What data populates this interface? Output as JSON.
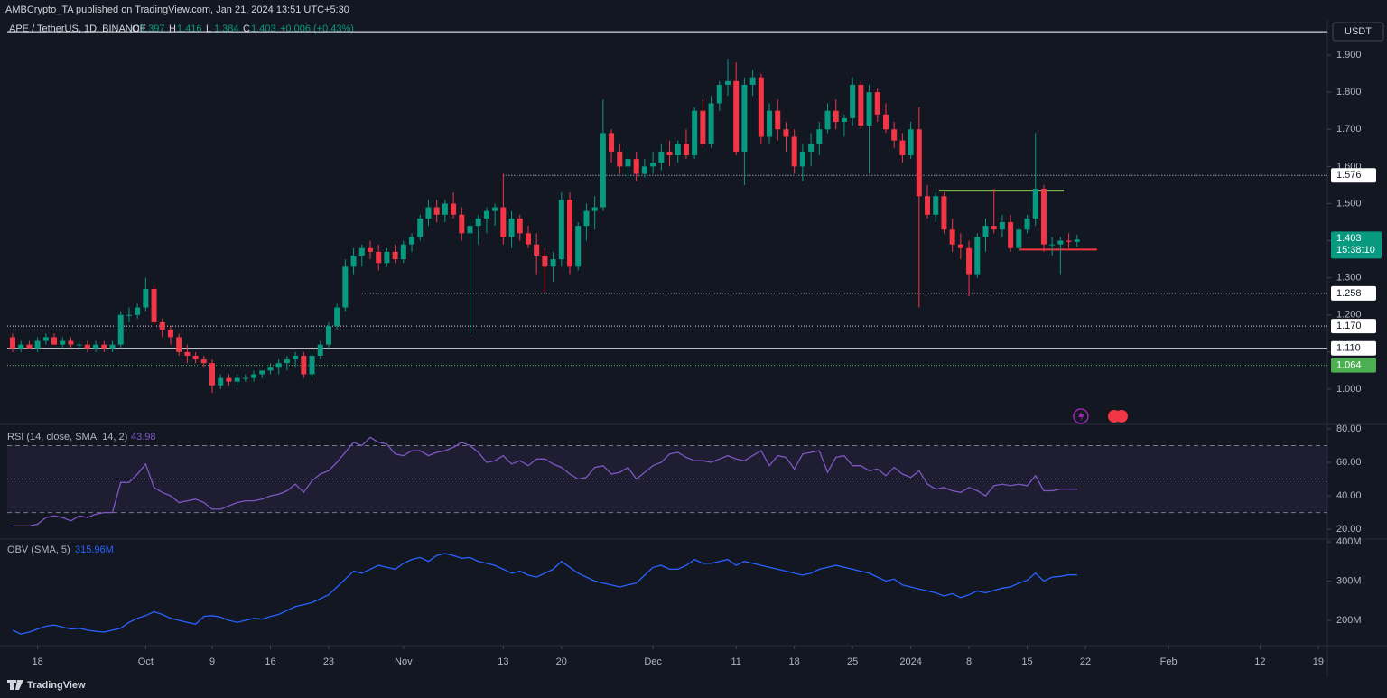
{
  "header": {
    "publisher": "AMBCrypto_TA published on TradingView.com, Jan 21, 2024 13:51 UTC+5:30",
    "brand": "TradingView"
  },
  "chart_data": [
    {
      "type": "candlestick",
      "symbol": "APE / TetherUS, 1D, BINANCE",
      "ohlc_letters": [
        "O",
        "H",
        "L",
        "C"
      ],
      "change": "+0.006 (+0.43%)",
      "currency": "USDT",
      "countdown": "15:38:10",
      "up_color": "#089981",
      "down_color": "#f23645",
      "xlim": [
        -0.65,
        158.1
      ],
      "xticks": [
        {
          "value": 3,
          "label": "18"
        },
        {
          "value": 16,
          "label": "Oct"
        },
        {
          "value": 24,
          "label": "9"
        },
        {
          "value": 31,
          "label": "16"
        },
        {
          "value": 38,
          "label": "23"
        },
        {
          "value": 47,
          "label": "Nov"
        },
        {
          "value": 59,
          "label": "13"
        },
        {
          "value": 66,
          "label": "20"
        },
        {
          "value": 77,
          "label": "Dec"
        },
        {
          "value": 87,
          "label": "11"
        },
        {
          "value": 94,
          "label": "18"
        },
        {
          "value": 101,
          "label": "25"
        },
        {
          "value": 108,
          "label": "2024"
        },
        {
          "value": 115,
          "label": "8"
        },
        {
          "value": 122,
          "label": "15"
        },
        {
          "value": 129,
          "label": "22"
        },
        {
          "value": 139,
          "label": "Feb"
        },
        {
          "value": 150,
          "label": "12"
        },
        {
          "value": 157,
          "label": "19"
        }
      ],
      "ylim": [
        0.905,
        1.995
      ],
      "yticks": [
        {
          "value": 1.0,
          "label": "1.000"
        },
        {
          "value": 1.1,
          "label": "1.100"
        },
        {
          "value": 1.2,
          "label": "1.200"
        },
        {
          "value": 1.3,
          "label": "1.300"
        },
        {
          "value": 1.4,
          "label": "1.400"
        },
        {
          "value": 1.5,
          "label": "1.500"
        },
        {
          "value": 1.6,
          "label": "1.600"
        },
        {
          "value": 1.7,
          "label": "1.700"
        },
        {
          "value": 1.8,
          "label": "1.800"
        },
        {
          "value": 1.9,
          "label": "1.900"
        }
      ],
      "levels": [
        {
          "value": 1.963,
          "style": "solid",
          "color": "#d1d4dc"
        },
        {
          "value": 1.576,
          "style": "dotted",
          "color": "#d1d4dc"
        },
        {
          "value": 1.258,
          "style": "dotted",
          "color": "#d1d4dc"
        },
        {
          "value": 1.17,
          "label": "1.170",
          "style": "dotted",
          "color": "#d1d4dc"
        },
        {
          "value": 1.11,
          "label": "1.110",
          "style": "solid",
          "color": "#d1d4dc"
        },
        {
          "value": 1.064,
          "style": "dotted",
          "color": "#4caf50"
        }
      ],
      "trend_lines": [
        {
          "value": 1.535,
          "color": "#8bc34a"
        },
        {
          "value": 1.376,
          "color": "#f23645"
        }
      ],
      "candles": [
        [
          1.14,
          1.15,
          1.1,
          1.11
        ],
        [
          1.11,
          1.13,
          1.1,
          1.12
        ],
        [
          1.12,
          1.13,
          1.11,
          1.11
        ],
        [
          1.11,
          1.14,
          1.1,
          1.13
        ],
        [
          1.13,
          1.15,
          1.12,
          1.14
        ],
        [
          1.14,
          1.15,
          1.12,
          1.12
        ],
        [
          1.12,
          1.14,
          1.11,
          1.13
        ],
        [
          1.13,
          1.14,
          1.11,
          1.12
        ],
        [
          1.12,
          1.13,
          1.11,
          1.12
        ],
        [
          1.12,
          1.13,
          1.1,
          1.11
        ],
        [
          1.11,
          1.13,
          1.1,
          1.12
        ],
        [
          1.12,
          1.13,
          1.1,
          1.11
        ],
        [
          1.11,
          1.13,
          1.1,
          1.12
        ],
        [
          1.12,
          1.21,
          1.11,
          1.2
        ],
        [
          1.2,
          1.22,
          1.18,
          1.2
        ],
        [
          1.2,
          1.23,
          1.19,
          1.22
        ],
        [
          1.22,
          1.3,
          1.21,
          1.27
        ],
        [
          1.27,
          1.28,
          1.17,
          1.18
        ],
        [
          1.18,
          1.19,
          1.14,
          1.16
        ],
        [
          1.16,
          1.17,
          1.12,
          1.14
        ],
        [
          1.14,
          1.15,
          1.09,
          1.1
        ],
        [
          1.1,
          1.12,
          1.07,
          1.09
        ],
        [
          1.09,
          1.1,
          1.07,
          1.08
        ],
        [
          1.08,
          1.09,
          1.06,
          1.07
        ],
        [
          1.07,
          1.08,
          0.99,
          1.01
        ],
        [
          1.01,
          1.04,
          1.0,
          1.03
        ],
        [
          1.03,
          1.04,
          1.01,
          1.02
        ],
        [
          1.02,
          1.04,
          1.01,
          1.03
        ],
        [
          1.03,
          1.04,
          1.02,
          1.03
        ],
        [
          1.03,
          1.05,
          1.02,
          1.04
        ],
        [
          1.04,
          1.05,
          1.03,
          1.05
        ],
        [
          1.05,
          1.07,
          1.04,
          1.06
        ],
        [
          1.06,
          1.08,
          1.04,
          1.07
        ],
        [
          1.07,
          1.09,
          1.05,
          1.08
        ],
        [
          1.08,
          1.1,
          1.06,
          1.09
        ],
        [
          1.09,
          1.1,
          1.03,
          1.04
        ],
        [
          1.04,
          1.1,
          1.03,
          1.09
        ],
        [
          1.09,
          1.13,
          1.08,
          1.12
        ],
        [
          1.12,
          1.18,
          1.11,
          1.17
        ],
        [
          1.17,
          1.23,
          1.16,
          1.22
        ],
        [
          1.22,
          1.35,
          1.21,
          1.33
        ],
        [
          1.33,
          1.38,
          1.31,
          1.36
        ],
        [
          1.36,
          1.39,
          1.33,
          1.38
        ],
        [
          1.38,
          1.4,
          1.35,
          1.37
        ],
        [
          1.37,
          1.39,
          1.32,
          1.34
        ],
        [
          1.34,
          1.38,
          1.33,
          1.37
        ],
        [
          1.37,
          1.39,
          1.34,
          1.35
        ],
        [
          1.35,
          1.4,
          1.34,
          1.39
        ],
        [
          1.39,
          1.42,
          1.37,
          1.41
        ],
        [
          1.41,
          1.47,
          1.4,
          1.46
        ],
        [
          1.46,
          1.51,
          1.44,
          1.49
        ],
        [
          1.49,
          1.51,
          1.45,
          1.47
        ],
        [
          1.47,
          1.51,
          1.45,
          1.5
        ],
        [
          1.5,
          1.53,
          1.46,
          1.47
        ],
        [
          1.47,
          1.49,
          1.4,
          1.42
        ],
        [
          1.42,
          1.46,
          1.15,
          1.44
        ],
        [
          1.44,
          1.47,
          1.39,
          1.46
        ],
        [
          1.46,
          1.49,
          1.42,
          1.48
        ],
        [
          1.48,
          1.5,
          1.44,
          1.49
        ],
        [
          1.49,
          1.58,
          1.39,
          1.41
        ],
        [
          1.41,
          1.48,
          1.38,
          1.46
        ],
        [
          1.46,
          1.47,
          1.4,
          1.42
        ],
        [
          1.42,
          1.44,
          1.38,
          1.39
        ],
        [
          1.39,
          1.42,
          1.31,
          1.36
        ],
        [
          1.36,
          1.38,
          1.26,
          1.33
        ],
        [
          1.33,
          1.37,
          1.29,
          1.35
        ],
        [
          1.35,
          1.53,
          1.33,
          1.51
        ],
        [
          1.51,
          1.53,
          1.31,
          1.33
        ],
        [
          1.33,
          1.45,
          1.32,
          1.44
        ],
        [
          1.44,
          1.5,
          1.4,
          1.48
        ],
        [
          1.48,
          1.52,
          1.43,
          1.49
        ],
        [
          1.49,
          1.78,
          1.48,
          1.69
        ],
        [
          1.69,
          1.7,
          1.61,
          1.64
        ],
        [
          1.64,
          1.66,
          1.58,
          1.6
        ],
        [
          1.6,
          1.65,
          1.57,
          1.62
        ],
        [
          1.62,
          1.64,
          1.56,
          1.58
        ],
        [
          1.58,
          1.62,
          1.57,
          1.6
        ],
        [
          1.6,
          1.64,
          1.58,
          1.61
        ],
        [
          1.61,
          1.66,
          1.59,
          1.64
        ],
        [
          1.64,
          1.67,
          1.6,
          1.63
        ],
        [
          1.63,
          1.67,
          1.61,
          1.66
        ],
        [
          1.66,
          1.7,
          1.62,
          1.63
        ],
        [
          1.63,
          1.76,
          1.62,
          1.75
        ],
        [
          1.75,
          1.78,
          1.65,
          1.66
        ],
        [
          1.66,
          1.79,
          1.65,
          1.77
        ],
        [
          1.77,
          1.83,
          1.75,
          1.82
        ],
        [
          1.82,
          1.89,
          1.79,
          1.83
        ],
        [
          1.83,
          1.88,
          1.63,
          1.64
        ],
        [
          1.64,
          1.84,
          1.55,
          1.82
        ],
        [
          1.82,
          1.86,
          1.79,
          1.84
        ],
        [
          1.84,
          1.85,
          1.66,
          1.68
        ],
        [
          1.68,
          1.77,
          1.66,
          1.75
        ],
        [
          1.75,
          1.78,
          1.67,
          1.7
        ],
        [
          1.7,
          1.72,
          1.64,
          1.68
        ],
        [
          1.68,
          1.7,
          1.58,
          1.6
        ],
        [
          1.6,
          1.66,
          1.56,
          1.64
        ],
        [
          1.64,
          1.69,
          1.6,
          1.66
        ],
        [
          1.66,
          1.72,
          1.63,
          1.7
        ],
        [
          1.7,
          1.77,
          1.69,
          1.75
        ],
        [
          1.75,
          1.78,
          1.7,
          1.72
        ],
        [
          1.72,
          1.74,
          1.68,
          1.73
        ],
        [
          1.73,
          1.84,
          1.71,
          1.82
        ],
        [
          1.82,
          1.83,
          1.7,
          1.71
        ],
        [
          1.71,
          1.82,
          1.58,
          1.8
        ],
        [
          1.8,
          1.81,
          1.72,
          1.74
        ],
        [
          1.74,
          1.77,
          1.69,
          1.7
        ],
        [
          1.7,
          1.72,
          1.65,
          1.67
        ],
        [
          1.67,
          1.69,
          1.61,
          1.63
        ],
        [
          1.63,
          1.72,
          1.62,
          1.7
        ],
        [
          1.7,
          1.76,
          1.22,
          1.52
        ],
        [
          1.52,
          1.55,
          1.46,
          1.47
        ],
        [
          1.47,
          1.53,
          1.45,
          1.52
        ],
        [
          1.52,
          1.53,
          1.42,
          1.43
        ],
        [
          1.43,
          1.46,
          1.37,
          1.39
        ],
        [
          1.39,
          1.42,
          1.35,
          1.38
        ],
        [
          1.38,
          1.4,
          1.25,
          1.31
        ],
        [
          1.31,
          1.42,
          1.3,
          1.41
        ],
        [
          1.41,
          1.46,
          1.37,
          1.44
        ],
        [
          1.44,
          1.54,
          1.42,
          1.43
        ],
        [
          1.43,
          1.47,
          1.41,
          1.45
        ],
        [
          1.45,
          1.47,
          1.37,
          1.38
        ],
        [
          1.38,
          1.44,
          1.37,
          1.43
        ],
        [
          1.43,
          1.47,
          1.42,
          1.46
        ],
        [
          1.46,
          1.69,
          1.44,
          1.54
        ],
        [
          1.54,
          1.55,
          1.37,
          1.39
        ],
        [
          1.39,
          1.41,
          1.36,
          1.39
        ],
        [
          1.39,
          1.41,
          1.31,
          1.4
        ],
        [
          1.4,
          1.42,
          1.38,
          1.397
        ],
        [
          1.397,
          1.416,
          1.384,
          1.403
        ]
      ]
    },
    {
      "type": "line",
      "title": "RSI (14, close, SMA, 14, 2)",
      "color": "#7e57c2",
      "band": [
        30,
        70
      ],
      "mid": 50,
      "ylim": [
        14.1,
        82.7
      ],
      "yticks": [
        {
          "value": 20,
          "label": "20.00"
        },
        {
          "value": 40,
          "label": "40.00"
        },
        {
          "value": 60,
          "label": "60.00"
        },
        {
          "value": 80,
          "label": "80.00"
        }
      ],
      "values": [
        22,
        22,
        22,
        23,
        27,
        28,
        27,
        25,
        28,
        27,
        29,
        30,
        30,
        48,
        48,
        53,
        59,
        45,
        42,
        40,
        36,
        37,
        38,
        36,
        32,
        32,
        34,
        36,
        37,
        37,
        38,
        40,
        41,
        43,
        47,
        42,
        49,
        53,
        55,
        60,
        66,
        72,
        70,
        75,
        72,
        71,
        65,
        64,
        67,
        67,
        64,
        66,
        67,
        69,
        72,
        70,
        66,
        60,
        61,
        64,
        59,
        61,
        58,
        62,
        62,
        59,
        57,
        53,
        50,
        51,
        57,
        58,
        53,
        54,
        57,
        50,
        54,
        58,
        60,
        65,
        66,
        63,
        61,
        61,
        60,
        62,
        64,
        62,
        61,
        64,
        67,
        58,
        64,
        63,
        56,
        65,
        66,
        67,
        54,
        63,
        64,
        58,
        58,
        55,
        56,
        52,
        57,
        53,
        51,
        55,
        47,
        44,
        45,
        43,
        42,
        45,
        43,
        40,
        46,
        47,
        46,
        47,
        46,
        52,
        43,
        43,
        44,
        44,
        43.98
      ]
    },
    {
      "type": "line",
      "title": "OBV (SMA, 5)",
      "color": "#2962ff",
      "last_label": "315.96M",
      "ylim": [
        135.6,
        406.9
      ],
      "yticks": [
        {
          "value": 200,
          "label": "200M"
        },
        {
          "value": 300,
          "label": "300M"
        },
        {
          "value": 400,
          "label": "400M"
        }
      ],
      "values": [
        175,
        165,
        170,
        178,
        185,
        188,
        183,
        178,
        180,
        175,
        172,
        170,
        175,
        180,
        195,
        205,
        212,
        222,
        215,
        205,
        200,
        195,
        190,
        210,
        212,
        208,
        200,
        195,
        200,
        205,
        203,
        210,
        215,
        225,
        235,
        240,
        245,
        255,
        265,
        285,
        305,
        325,
        320,
        330,
        340,
        335,
        330,
        345,
        355,
        360,
        350,
        365,
        370,
        365,
        358,
        360,
        350,
        345,
        340,
        330,
        320,
        325,
        315,
        310,
        320,
        330,
        350,
        335,
        320,
        310,
        300,
        295,
        290,
        285,
        290,
        295,
        315,
        335,
        340,
        330,
        330,
        340,
        355,
        345,
        345,
        350,
        355,
        340,
        350,
        345,
        340,
        335,
        330,
        325,
        320,
        315,
        320,
        330,
        335,
        340,
        335,
        330,
        325,
        320,
        310,
        300,
        305,
        290,
        285,
        280,
        275,
        270,
        262,
        268,
        258,
        265,
        275,
        270,
        276,
        282,
        285,
        295,
        302,
        320,
        300,
        310,
        312,
        316,
        315.96
      ]
    }
  ]
}
